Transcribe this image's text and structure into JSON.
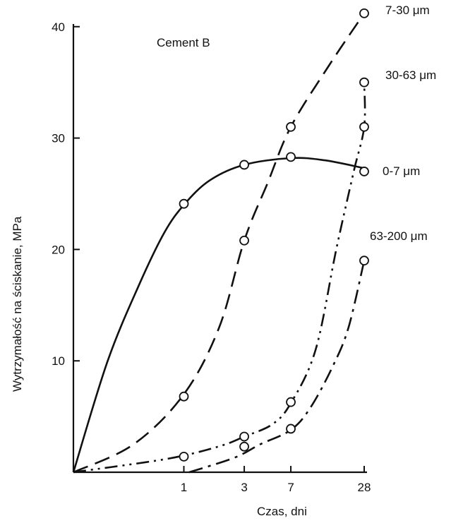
{
  "chart_data": {
    "type": "line",
    "title": "Cement B",
    "xlabel": "Czas, dni",
    "ylabel": "Wytrzymałość na ściskanie, MPa",
    "x_scale": "log",
    "xticks": [
      {
        "value": 1,
        "label": "1"
      },
      {
        "value": 3,
        "label": "3"
      },
      {
        "value": 7,
        "label": "7"
      },
      {
        "value": 28,
        "label": "28"
      }
    ],
    "yticks": [
      {
        "value": 10,
        "label": "10"
      },
      {
        "value": 20,
        "label": "20"
      },
      {
        "value": 30,
        "label": "30"
      },
      {
        "value": 40,
        "label": "40"
      }
    ],
    "xlim": [
      0.134,
      28
    ],
    "ylim": [
      0,
      41
    ],
    "grid": false,
    "legend": "inline labels at right end of each curve",
    "series": [
      {
        "name": "0-7 μm",
        "style": "solid",
        "curve": [
          [
            0.134,
            0
          ],
          [
            0.25,
            10
          ],
          [
            0.45,
            17
          ],
          [
            0.7,
            21.5
          ],
          [
            1,
            24
          ],
          [
            1.6,
            26.2
          ],
          [
            3,
            27.6
          ],
          [
            7,
            28.2
          ],
          [
            13,
            28
          ],
          [
            28,
            27.3
          ]
        ],
        "points": [
          {
            "x": 1,
            "y": 24.1
          },
          {
            "x": 3,
            "y": 27.6
          },
          {
            "x": 7,
            "y": 28.3
          },
          {
            "x": 28,
            "y": 27
          }
        ]
      },
      {
        "name": "7-30 μm",
        "style": "dashed",
        "curve": [
          [
            0.134,
            0
          ],
          [
            0.4,
            2.5
          ],
          [
            1,
            7
          ],
          [
            1.9,
            13
          ],
          [
            3,
            20.8
          ],
          [
            4.6,
            26
          ],
          [
            7,
            31
          ],
          [
            14,
            36.5
          ],
          [
            28,
            41.2
          ]
        ],
        "points": [
          {
            "x": 1,
            "y": 6.8
          },
          {
            "x": 3,
            "y": 20.8
          },
          {
            "x": 7,
            "y": 31
          },
          {
            "x": 28,
            "y": 41.2
          }
        ]
      },
      {
        "name": "30-63 μm",
        "style": "dash-dot-dot",
        "curve": [
          [
            0.134,
            0
          ],
          [
            0.5,
            0.9
          ],
          [
            1,
            1.5
          ],
          [
            2,
            2.4
          ],
          [
            3,
            3.2
          ],
          [
            5,
            4.3
          ],
          [
            7,
            6.2
          ],
          [
            11,
            11
          ],
          [
            16,
            20
          ],
          [
            22,
            27
          ],
          [
            28,
            31
          ],
          [
            28,
            35
          ]
        ],
        "points": [
          {
            "x": 1,
            "y": 1.4
          },
          {
            "x": 3,
            "y": 3.2
          },
          {
            "x": 3,
            "y": 2.3
          },
          {
            "x": 7,
            "y": 6.3
          },
          {
            "x": 28,
            "y": 31
          },
          {
            "x": 28,
            "y": 35
          }
        ]
      },
      {
        "name": "63-200 μm",
        "style": "dash-dot",
        "curve": [
          [
            1.1,
            0
          ],
          [
            2.5,
            1.3
          ],
          [
            4,
            2.5
          ],
          [
            7,
            3.8
          ],
          [
            10,
            5.8
          ],
          [
            15,
            9.5
          ],
          [
            20,
            13
          ],
          [
            28,
            19
          ]
        ],
        "points": [
          {
            "x": 7,
            "y": 3.9
          },
          {
            "x": 28,
            "y": 19
          }
        ]
      }
    ]
  }
}
